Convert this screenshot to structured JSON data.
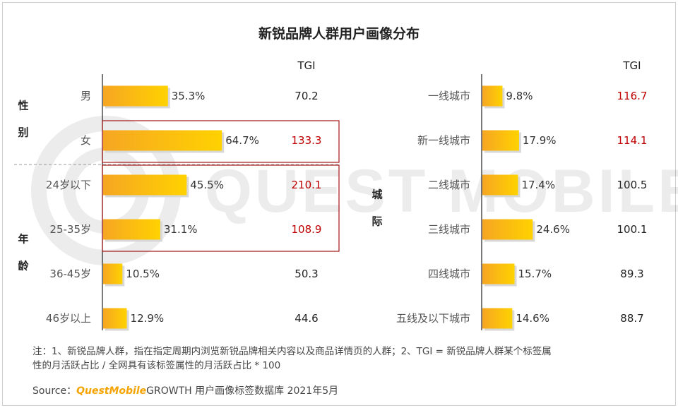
{
  "title": "新锐品牌人群用户画像分布",
  "watermark": "QUEST MOBILE",
  "colors": {
    "bar_start": "#f6a623",
    "bar_end": "#ffd200",
    "highlight_text": "#c00000",
    "highlight_box": "#a31515",
    "brand": "#f5a300"
  },
  "chart_data": [
    {
      "type": "bar",
      "orientation": "horizontal",
      "tgi_header": "TGI",
      "groups": [
        {
          "label_chars": [
            "性",
            "别"
          ],
          "categories": [
            "男",
            "女"
          ]
        },
        {
          "label_chars": [
            "年",
            "龄"
          ],
          "categories": [
            "24岁以下",
            "25-35岁",
            "36-45岁",
            "46岁以上"
          ]
        }
      ],
      "categories": [
        "男",
        "女",
        "24岁以下",
        "25-35岁",
        "36-45岁",
        "46岁以上"
      ],
      "values": [
        35.3,
        64.7,
        45.5,
        31.1,
        10.5,
        12.9
      ],
      "value_labels": [
        "35.3%",
        "64.7%",
        "45.5%",
        "31.1%",
        "10.5%",
        "12.9%"
      ],
      "tgi": [
        "70.2",
        "133.3",
        "210.1",
        "108.9",
        "50.3",
        "44.6"
      ],
      "tgi_highlight": [
        false,
        true,
        true,
        true,
        false,
        false
      ],
      "boxed_rows": [
        [
          1
        ],
        [
          2,
          3
        ]
      ]
    },
    {
      "type": "bar",
      "orientation": "horizontal",
      "tgi_header": "TGI",
      "groups": [
        {
          "label_chars": [
            "城",
            "际"
          ],
          "categories": [
            "一线城市",
            "新一线城市",
            "二线城市",
            "三线城市",
            "四线城市",
            "五线及以下城市"
          ]
        }
      ],
      "categories": [
        "一线城市",
        "新一线城市",
        "二线城市",
        "三线城市",
        "四线城市",
        "五线及以下城市"
      ],
      "values": [
        9.8,
        17.9,
        17.4,
        24.6,
        15.7,
        14.6
      ],
      "value_labels": [
        "9.8%",
        "17.9%",
        "17.4%",
        "24.6%",
        "15.7%",
        "14.6%"
      ],
      "tgi": [
        "116.7",
        "114.1",
        "100.5",
        "100.1",
        "89.3",
        "88.7"
      ],
      "tgi_highlight": [
        true,
        true,
        false,
        false,
        false,
        false
      ],
      "boxed_rows": []
    }
  ],
  "footnote": {
    "line1": "注：1、新锐品牌人群，指在指定周期内浏览新锐品牌相关内容以及商品详情页的人群；2、TGI = 新锐品牌人群某个标签属",
    "line2": "性的月活跃占比 / 全网具有该标签属性的月活跃占比 * 100"
  },
  "source": {
    "prefix": "Source：",
    "brand": "QuestMobile",
    "rest": "GROWTH 用户画像标签数据库 2021年5月"
  }
}
